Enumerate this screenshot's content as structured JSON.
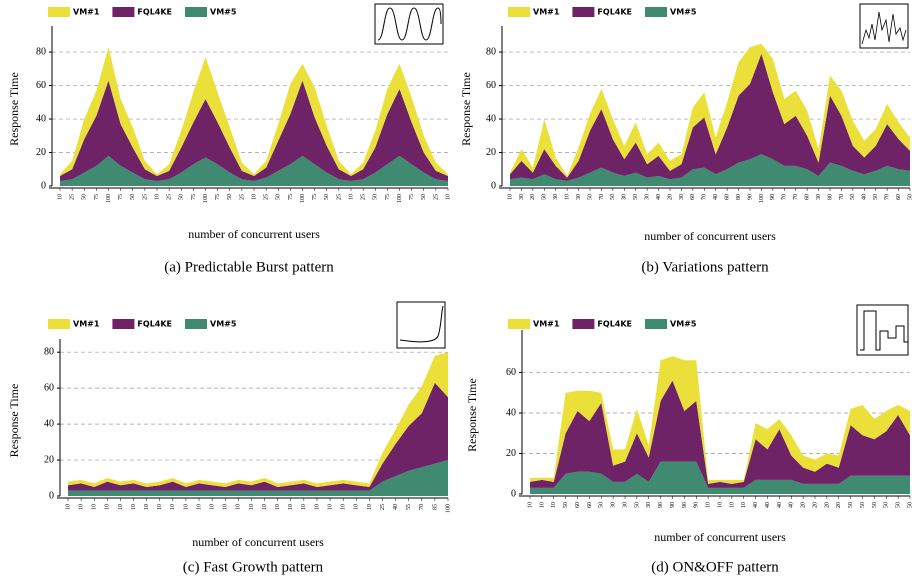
{
  "chart_data": [
    {
      "type": "area",
      "stacked": true,
      "caption": "(a) Predictable Burst pattern",
      "xlabel": "number of concurrent users",
      "ylabel": "Response Time",
      "legend": "top-left",
      "grid": true,
      "ylim": [
        0,
        92
      ],
      "yticks": [
        0,
        20,
        40,
        60,
        80
      ],
      "categories": [
        "10",
        "25",
        "50",
        "75",
        "100",
        "75",
        "50",
        "25",
        "10",
        "25",
        "50",
        "75",
        "100",
        "75",
        "50",
        "25",
        "10",
        "25",
        "50",
        "75",
        "100",
        "75",
        "50",
        "25",
        "10",
        "25",
        "50",
        "75",
        "100",
        "75",
        "50",
        "25",
        "10"
      ],
      "series": [
        {
          "name": "VM#1",
          "color": "#ebe03a",
          "values": [
            1,
            5,
            12,
            15,
            20,
            15,
            12,
            5,
            1,
            4,
            10,
            18,
            25,
            18,
            12,
            5,
            1,
            4,
            10,
            18,
            10,
            18,
            12,
            5,
            1,
            4,
            10,
            15,
            15,
            15,
            10,
            5,
            1
          ]
        },
        {
          "name": "FQL4KE",
          "color": "#6e2367",
          "values": [
            3,
            6,
            20,
            30,
            45,
            25,
            15,
            6,
            3,
            5,
            15,
            25,
            35,
            25,
            15,
            5,
            3,
            6,
            18,
            30,
            45,
            28,
            16,
            6,
            3,
            6,
            15,
            30,
            40,
            25,
            12,
            5,
            3
          ]
        },
        {
          "name": "VM#5",
          "color": "#3f8a70",
          "values": [
            3,
            4,
            8,
            12,
            18,
            12,
            8,
            4,
            3,
            4,
            8,
            13,
            17,
            13,
            8,
            4,
            3,
            5,
            9,
            13,
            18,
            13,
            8,
            4,
            3,
            4,
            8,
            13,
            18,
            13,
            8,
            4,
            3
          ]
        }
      ]
    },
    {
      "type": "area",
      "stacked": true,
      "caption": "(b) Variations pattern",
      "xlabel": "number of concurrent users",
      "ylabel": "Response Time",
      "legend": "top-left",
      "grid": true,
      "ylim": [
        0,
        92
      ],
      "yticks": [
        0,
        20,
        40,
        60,
        80
      ],
      "categories": [
        "10",
        "30",
        "20",
        "50",
        "30",
        "10",
        "30",
        "50",
        "70",
        "50",
        "30",
        "50",
        "30",
        "40",
        "20",
        "30",
        "60",
        "70",
        "40",
        "60",
        "80",
        "90",
        "100",
        "90",
        "70",
        "70",
        "60",
        "30",
        "80",
        "70",
        "50",
        "40",
        "50",
        "70",
        "60",
        "50"
      ],
      "series": [
        {
          "name": "VM#1",
          "color": "#ebe03a",
          "values": [
            1,
            7,
            3,
            18,
            5,
            1,
            8,
            10,
            12,
            12,
            8,
            12,
            6,
            8,
            6,
            6,
            12,
            15,
            10,
            15,
            20,
            22,
            6,
            20,
            15,
            15,
            15,
            8,
            12,
            15,
            15,
            10,
            10,
            12,
            10,
            8
          ]
        },
        {
          "name": "FQL4KE",
          "color": "#6e2367",
          "values": [
            3,
            10,
            4,
            15,
            8,
            2,
            10,
            25,
            35,
            20,
            10,
            18,
            8,
            12,
            5,
            8,
            25,
            30,
            12,
            25,
            40,
            45,
            60,
            40,
            25,
            30,
            20,
            8,
            40,
            30,
            15,
            10,
            15,
            25,
            18,
            12
          ]
        },
        {
          "name": "VM#5",
          "color": "#3f8a70",
          "values": [
            4,
            5,
            4,
            7,
            4,
            3,
            5,
            8,
            11,
            8,
            6,
            8,
            5,
            6,
            4,
            5,
            10,
            11,
            7,
            10,
            14,
            16,
            19,
            16,
            12,
            12,
            10,
            6,
            14,
            12,
            9,
            7,
            9,
            12,
            10,
            9
          ]
        }
      ]
    },
    {
      "type": "area",
      "stacked": true,
      "caption": "(c) Fast Growth pattern",
      "xlabel": "number of concurrent users",
      "ylabel": "Response Time",
      "legend": "top-left",
      "grid": true,
      "ylim": [
        0,
        84
      ],
      "yticks": [
        0,
        20,
        40,
        60,
        80
      ],
      "categories": [
        "10",
        "10",
        "10",
        "10",
        "10",
        "10",
        "10",
        "10",
        "10",
        "10",
        "10",
        "10",
        "10",
        "10",
        "10",
        "10",
        "10",
        "10",
        "10",
        "10",
        "10",
        "10",
        "10",
        "10",
        "25",
        "40",
        "55",
        "70",
        "85",
        "100"
      ],
      "series": [
        {
          "name": "VM#1",
          "color": "#ebe03a",
          "values": [
            2,
            2,
            2,
            2,
            2,
            2,
            2,
            2,
            2,
            2,
            2,
            2,
            2,
            2,
            2,
            2,
            2,
            2,
            2,
            2,
            2,
            2,
            2,
            2,
            6,
            8,
            12,
            15,
            15,
            25
          ]
        },
        {
          "name": "FQL4KE",
          "color": "#6e2367",
          "values": [
            3,
            4,
            2,
            5,
            3,
            4,
            2,
            3,
            5,
            2,
            4,
            3,
            2,
            4,
            3,
            5,
            2,
            3,
            4,
            2,
            3,
            4,
            3,
            2,
            10,
            18,
            25,
            30,
            45,
            35
          ]
        },
        {
          "name": "VM#5",
          "color": "#3f8a70",
          "values": [
            3,
            3,
            3,
            3,
            3,
            3,
            3,
            3,
            3,
            3,
            3,
            3,
            3,
            3,
            3,
            3,
            3,
            3,
            3,
            3,
            3,
            3,
            3,
            3,
            8,
            11,
            14,
            16,
            18,
            20
          ]
        }
      ]
    },
    {
      "type": "area",
      "stacked": true,
      "caption": "(d) ON&OFF pattern",
      "xlabel": "number of concurrent users",
      "ylabel": "Response Time",
      "legend": "top-left",
      "grid": true,
      "ylim": [
        0,
        78
      ],
      "yticks": [
        0,
        20,
        40,
        60
      ],
      "categories": [
        "10",
        "10",
        "10",
        "50",
        "60",
        "60",
        "50",
        "30",
        "30",
        "50",
        "30",
        "90",
        "90",
        "90",
        "90",
        "10",
        "10",
        "10",
        "10",
        "40",
        "40",
        "40",
        "40",
        "20",
        "20",
        "20",
        "20",
        "50",
        "50",
        "50",
        "50",
        "50",
        "50"
      ],
      "series": [
        {
          "name": "VM#1",
          "color": "#ebe03a",
          "values": [
            2,
            1,
            2,
            20,
            10,
            15,
            5,
            8,
            6,
            12,
            6,
            20,
            12,
            25,
            20,
            2,
            1,
            2,
            1,
            8,
            10,
            5,
            10,
            6,
            6,
            5,
            6,
            8,
            15,
            10,
            10,
            5,
            12
          ]
        },
        {
          "name": "FQL4KE",
          "color": "#6e2367",
          "values": [
            3,
            4,
            3,
            20,
            30,
            25,
            35,
            8,
            10,
            20,
            12,
            30,
            40,
            25,
            30,
            2,
            3,
            2,
            3,
            20,
            15,
            25,
            12,
            8,
            6,
            10,
            8,
            25,
            20,
            18,
            22,
            30,
            20
          ]
        },
        {
          "name": "VM#5",
          "color": "#3f8a70",
          "values": [
            3,
            3,
            3,
            10,
            11,
            11,
            10,
            6,
            6,
            10,
            6,
            16,
            16,
            16,
            16,
            3,
            3,
            3,
            3,
            7,
            7,
            7,
            7,
            5,
            5,
            5,
            5,
            9,
            9,
            9,
            9,
            9,
            9
          ]
        }
      ]
    }
  ]
}
